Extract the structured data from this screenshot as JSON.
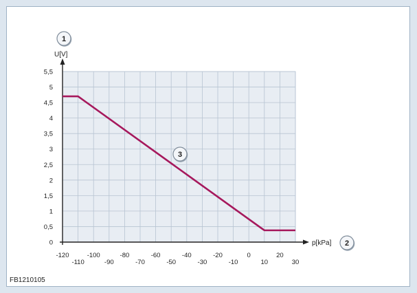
{
  "chart_data": {
    "type": "line",
    "title": "",
    "ylabel": "U[V]",
    "xlabel": "p[kPa]",
    "xlim": [
      -120,
      30
    ],
    "ylim": [
      0,
      5.5
    ],
    "x_ticks": [
      -120,
      -110,
      -100,
      -90,
      -80,
      -70,
      -60,
      -50,
      -40,
      -30,
      -20,
      -10,
      0,
      10,
      20,
      30
    ],
    "x_tick_labels": [
      "-120",
      "-110",
      "-100",
      "-90",
      "-80",
      "-70",
      "-60",
      "-50",
      "-40",
      "-30",
      "-20",
      "-10",
      "0",
      "10",
      "20",
      "30"
    ],
    "y_ticks": [
      0,
      0.5,
      1,
      1.5,
      2,
      2.5,
      3,
      3.5,
      4,
      4.5,
      5,
      5.5
    ],
    "y_tick_labels": [
      "0",
      "0,5",
      "1",
      "1,5",
      "2",
      "2,5",
      "3",
      "3,5",
      "4",
      "4,5",
      "5",
      "5,5"
    ],
    "grid": true,
    "series": [
      {
        "color": "#a6185c",
        "points": [
          [
            -120,
            4.7
          ],
          [
            -110,
            4.7
          ],
          [
            10,
            0.38
          ],
          [
            30,
            0.38
          ]
        ]
      }
    ],
    "callouts": [
      "1",
      "2",
      "3"
    ],
    "colors": {
      "plot_bg": "#e8edf3",
      "grid": "#b7c4d2",
      "axis": "#222222",
      "line": "#a6185c"
    }
  },
  "figure_code": "FB1210105"
}
